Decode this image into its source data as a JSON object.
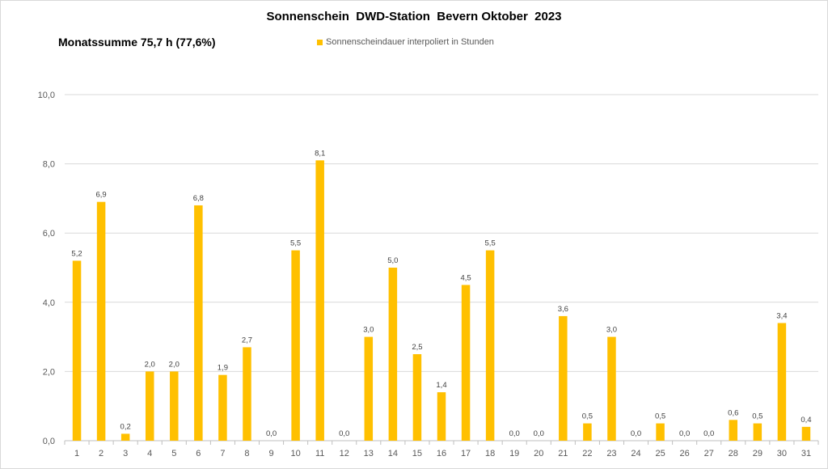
{
  "chart_data": {
    "type": "bar",
    "title": "Sonnenschein  DWD-Station  Bevern Oktober  2023",
    "subtitle": "Monatssumme 75,7 h (77,6%)",
    "series": [
      {
        "name": "Sonnenscheindauer interpoliert in Stunden",
        "color": "#FFC000",
        "values": [
          5.2,
          6.9,
          0.2,
          2.0,
          2.0,
          6.8,
          1.9,
          2.7,
          0.0,
          5.5,
          8.1,
          0.0,
          3.0,
          5.0,
          2.5,
          1.4,
          4.5,
          5.5,
          0.0,
          0.0,
          3.6,
          0.5,
          3.0,
          0.0,
          0.5,
          0.0,
          0.0,
          0.6,
          0.5,
          3.4,
          0.4
        ]
      }
    ],
    "categories": [
      "1",
      "2",
      "3",
      "4",
      "5",
      "6",
      "7",
      "8",
      "9",
      "10",
      "11",
      "12",
      "13",
      "14",
      "15",
      "16",
      "17",
      "18",
      "19",
      "20",
      "21",
      "22",
      "23",
      "24",
      "25",
      "26",
      "27",
      "28",
      "29",
      "30",
      "31"
    ],
    "data_labels": [
      "5,2",
      "6,9",
      "0,2",
      "2,0",
      "2,0",
      "6,8",
      "1,9",
      "2,7",
      "0,0",
      "5,5",
      "8,1",
      "0,0",
      "3,0",
      "5,0",
      "2,5",
      "1,4",
      "4,5",
      "5,5",
      "0,0",
      "0,0",
      "3,6",
      "0,5",
      "3,0",
      "0,0",
      "0,5",
      "0,0",
      "0,0",
      "0,6",
      "0,5",
      "3,4",
      "0,4"
    ],
    "y_ticks": [
      {
        "value": 0,
        "label": "0,0"
      },
      {
        "value": 2,
        "label": "2,0"
      },
      {
        "value": 4,
        "label": "4,0"
      },
      {
        "value": 6,
        "label": "6,0"
      },
      {
        "value": 8,
        "label": "8,0"
      },
      {
        "value": 10,
        "label": "10,0"
      }
    ],
    "ylim": [
      0,
      10
    ],
    "grid": true,
    "legend_position": "top-center"
  }
}
